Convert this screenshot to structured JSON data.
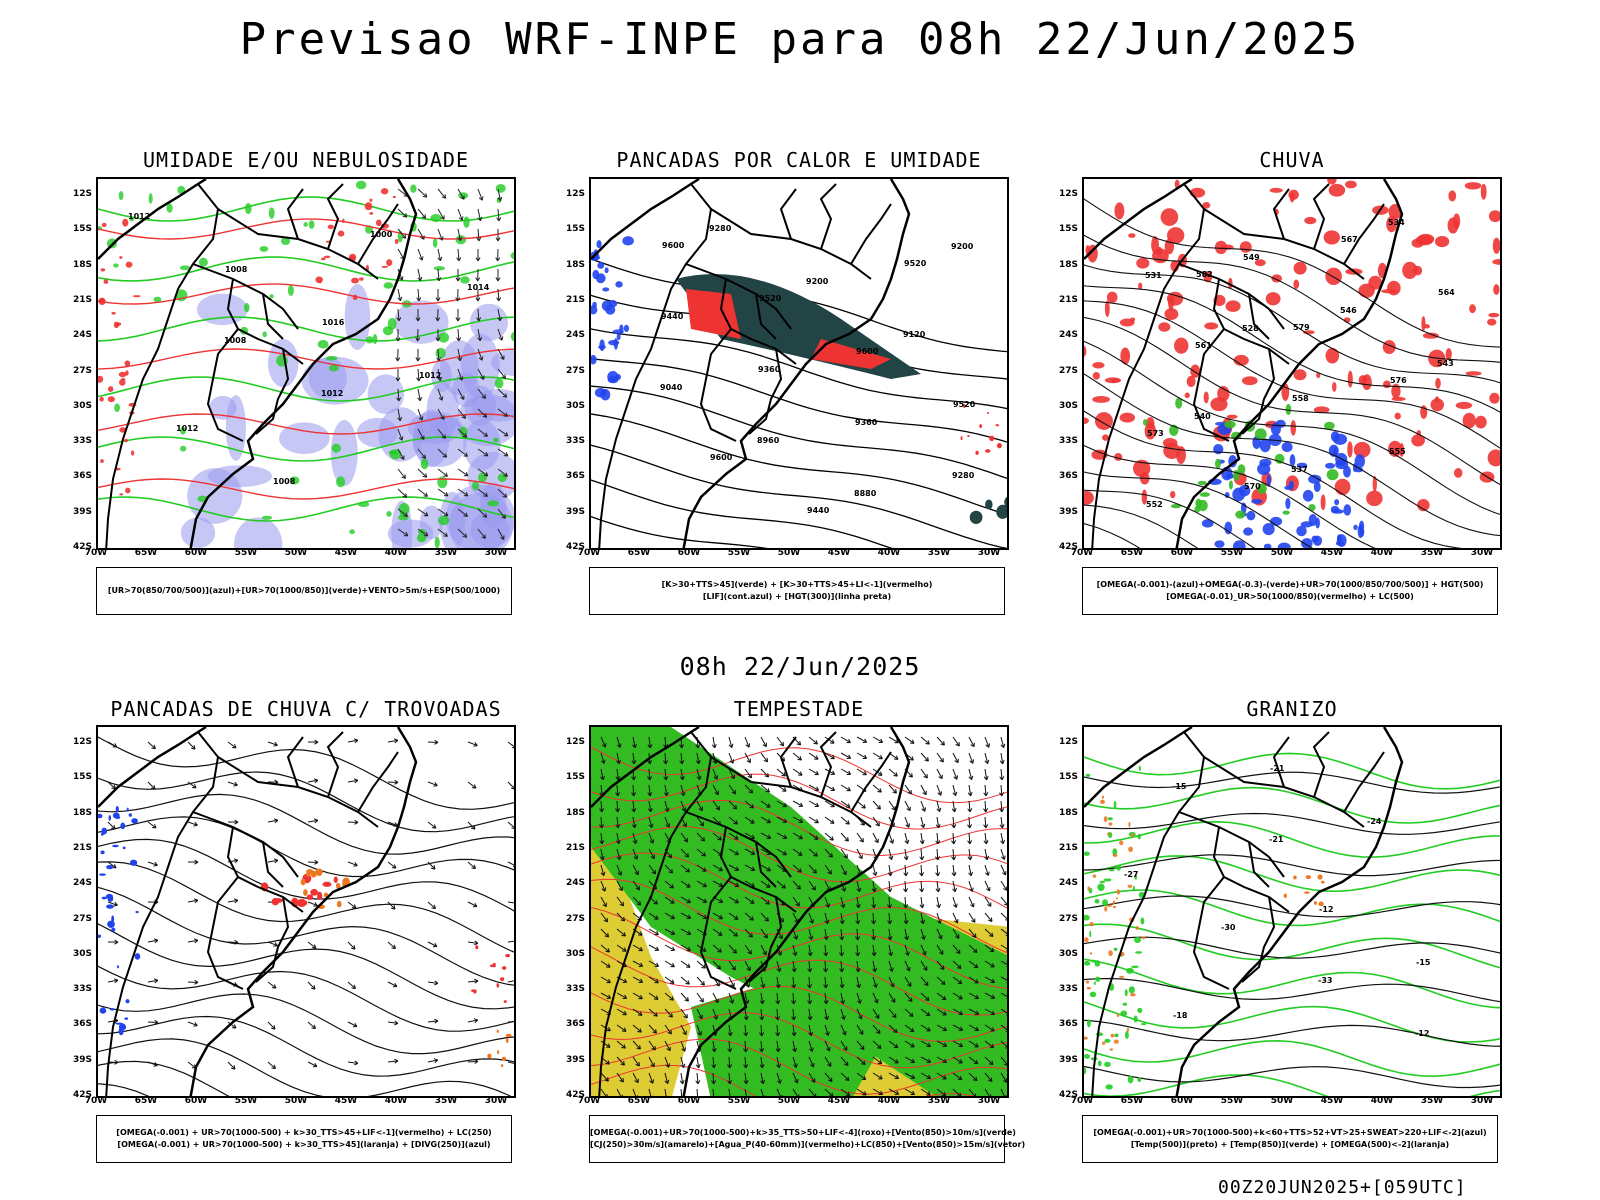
{
  "header": {
    "title": "Previsao WRF-INPE  para 08h 22/Jun/2025"
  },
  "middle_title": "08h 22/Jun/2025",
  "footer": "00Z20JUN2025+[059UTC]",
  "axes": {
    "lat_labels": [
      "12S",
      "15S",
      "18S",
      "21S",
      "24S",
      "27S",
      "30S",
      "33S",
      "36S",
      "39S",
      "42S"
    ],
    "lon_labels": [
      "70W",
      "65W",
      "60W",
      "55W",
      "50W",
      "45W",
      "40W",
      "35W",
      "30W"
    ]
  },
  "colors": {
    "blue": "#9999ee",
    "blue_strong": "#2244ee",
    "green": "#22cc22",
    "green_fill": "#33bb22",
    "red": "#ee3333",
    "dark_teal": "#224444",
    "yellow": "#ddcc33",
    "orange": "#ee7722"
  },
  "panels": [
    {
      "title": "UMIDADE E/OU NEBULOSIDADE",
      "legend": [
        "[UR>70(850/700/500)](azul)+[UR>70(1000/850)](verde)+VENTO>5m/s+ESP(500/1000)"
      ],
      "contour_labels": [
        "1012",
        "1008",
        "1016",
        "1012",
        "1012",
        "1008",
        "1000",
        "1014",
        "1008",
        "1012"
      ]
    },
    {
      "title": "PANCADAS POR CALOR E UMIDADE",
      "legend": [
        "[K>30+TTS>45](verde) + [K>30+TTS>45+LI<-1](vermelho)",
        "[LIF](cont.azul) + [HGT(300)](linha preta)"
      ],
      "contour_labels": [
        "9600",
        "9520",
        "9600",
        "9520",
        "9600",
        "9440",
        "9520",
        "9440",
        "9360",
        "9360",
        "9280",
        "9280",
        "9200",
        "9120",
        "9040",
        "8960",
        "8880",
        "9200"
      ]
    },
    {
      "title": "CHUVA",
      "legend": [
        "[OMEGA(-0.001)-(azul)+OMEGA(-0.3)-(verde)+UR>70(1000/850/700/500)] + HGT(500)",
        "[OMEGA(-0.01)_UR>50(1000/850)(vermelho) + LC(500)"
      ],
      "contour_labels": [
        "582",
        "579",
        "576",
        "573",
        "570",
        "567",
        "564",
        "561",
        "558",
        "555",
        "552",
        "549",
        "546",
        "543",
        "540",
        "537",
        "534",
        "531",
        "528"
      ]
    },
    {
      "title": "PANCADAS DE CHUVA C/ TROVOADAS",
      "legend": [
        "[OMEGA(-0.001) + UR>70(1000-500) + k>30_TTS>45+LIF<-1](vermelho) + LC(250)",
        "[OMEGA(-0.001) + UR>70(1000-500) + k>30_TTS>45](laranja) + [DIVG(250)](azul)"
      ],
      "contour_labels": []
    },
    {
      "title": "TEMPESTADE",
      "legend": [
        "[OMEGA(-0.001)+UR>70(1000-500)+k>35_TTS>50+LIF<-4](roxo)+[Vento(850)>10m/s](verde)",
        "[CJ(250)>30m/s](amarelo)+[Agua_P(40-60mm)](vermelho)+LC(850)+[Vento(850)>15m/s](vetor)"
      ],
      "contour_labels": []
    },
    {
      "title": "GRANIZO",
      "legend": [
        "[OMEGA(-0.001)+UR>70(1000-500)+k<60+TTS>52+VT>25+SWEAT>220+LIF<-2](azul)",
        "[Temp(500)](preto) + [Temp(850)](verde) + [OMEGA(500)<-2](laranja)"
      ],
      "contour_labels": [
        "-12",
        "-15",
        "-18",
        "-21",
        "-24",
        "-27",
        "-30",
        "-33",
        "-12",
        "-15",
        "-21"
      ]
    }
  ]
}
